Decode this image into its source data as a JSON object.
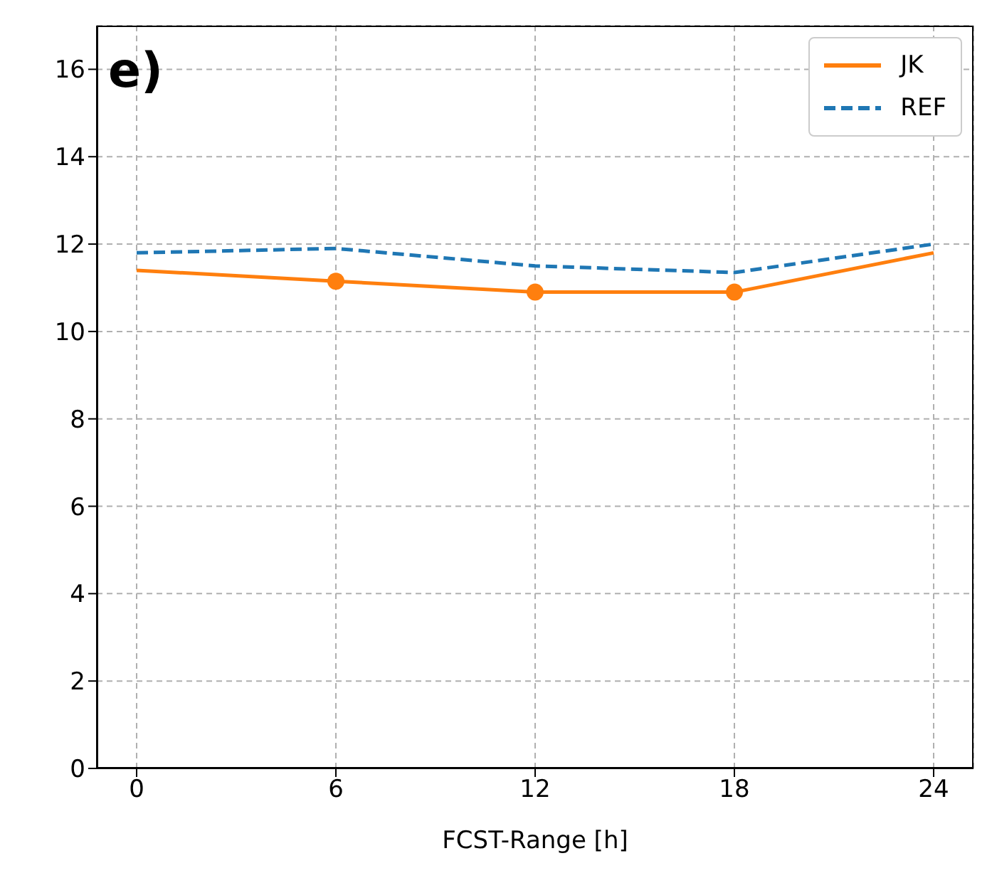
{
  "chart_data": {
    "type": "line",
    "xlabel": "FCST-Range [h]",
    "annotations": [
      "e)"
    ],
    "x": [
      0,
      6,
      12,
      18,
      24
    ],
    "series": [
      {
        "name": "JK",
        "color": "#ff7f0e",
        "values": [
          11.4,
          11.15,
          10.9,
          10.9,
          11.8
        ],
        "line_style": "solid"
      },
      {
        "name": "REF",
        "color": "#1f77b4",
        "values": [
          11.8,
          11.9,
          11.5,
          11.35,
          12.0
        ],
        "line_style": "dashed"
      },
      {
        "type": "scatter",
        "color": "#ff7f0e",
        "x": [
          6,
          12,
          18
        ],
        "values": [
          11.15,
          10.9,
          10.9
        ],
        "marker": "circle"
      }
    ],
    "xlim": [
      -1.2,
      25.2
    ],
    "xticks": [
      0,
      6,
      12,
      18,
      24
    ],
    "ylim": [
      0,
      17
    ],
    "yticks": [
      0,
      2,
      4,
      6,
      8,
      10,
      12,
      14,
      16
    ],
    "grid": true,
    "legend": "top right"
  }
}
